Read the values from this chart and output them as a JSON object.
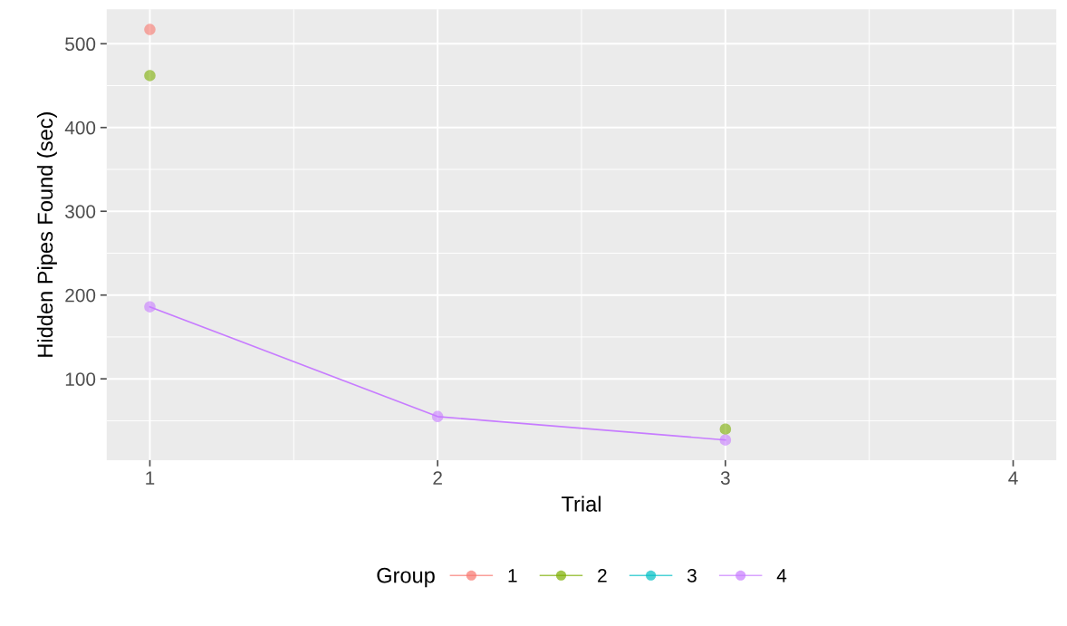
{
  "chart_data": {
    "type": "line",
    "xlabel": "Trial",
    "ylabel": "Hidden Pipes Found (sec)",
    "legend_title": "Group",
    "x": [
      1,
      2,
      3
    ],
    "series": [
      {
        "name": "1",
        "type": "scatter",
        "color": "#f8766d",
        "values": [
          517,
          null,
          null
        ]
      },
      {
        "name": "2",
        "type": "scatter",
        "color": "#7cae00",
        "values": [
          462,
          null,
          40
        ]
      },
      {
        "name": "3",
        "color": "#00bfc4",
        "values": [
          null,
          null,
          null
        ]
      },
      {
        "name": "4",
        "color": "#c77cff",
        "values": [
          186,
          55,
          27
        ]
      }
    ],
    "xlim": [
      0.85,
      4.15
    ],
    "xticks": [
      1,
      2,
      3,
      4
    ],
    "ylim": [
      3,
      541
    ],
    "yticks": [
      100,
      200,
      300,
      400,
      500
    ],
    "grid": true,
    "legend": "bottom",
    "marker": "circle",
    "line_style": "solid"
  }
}
